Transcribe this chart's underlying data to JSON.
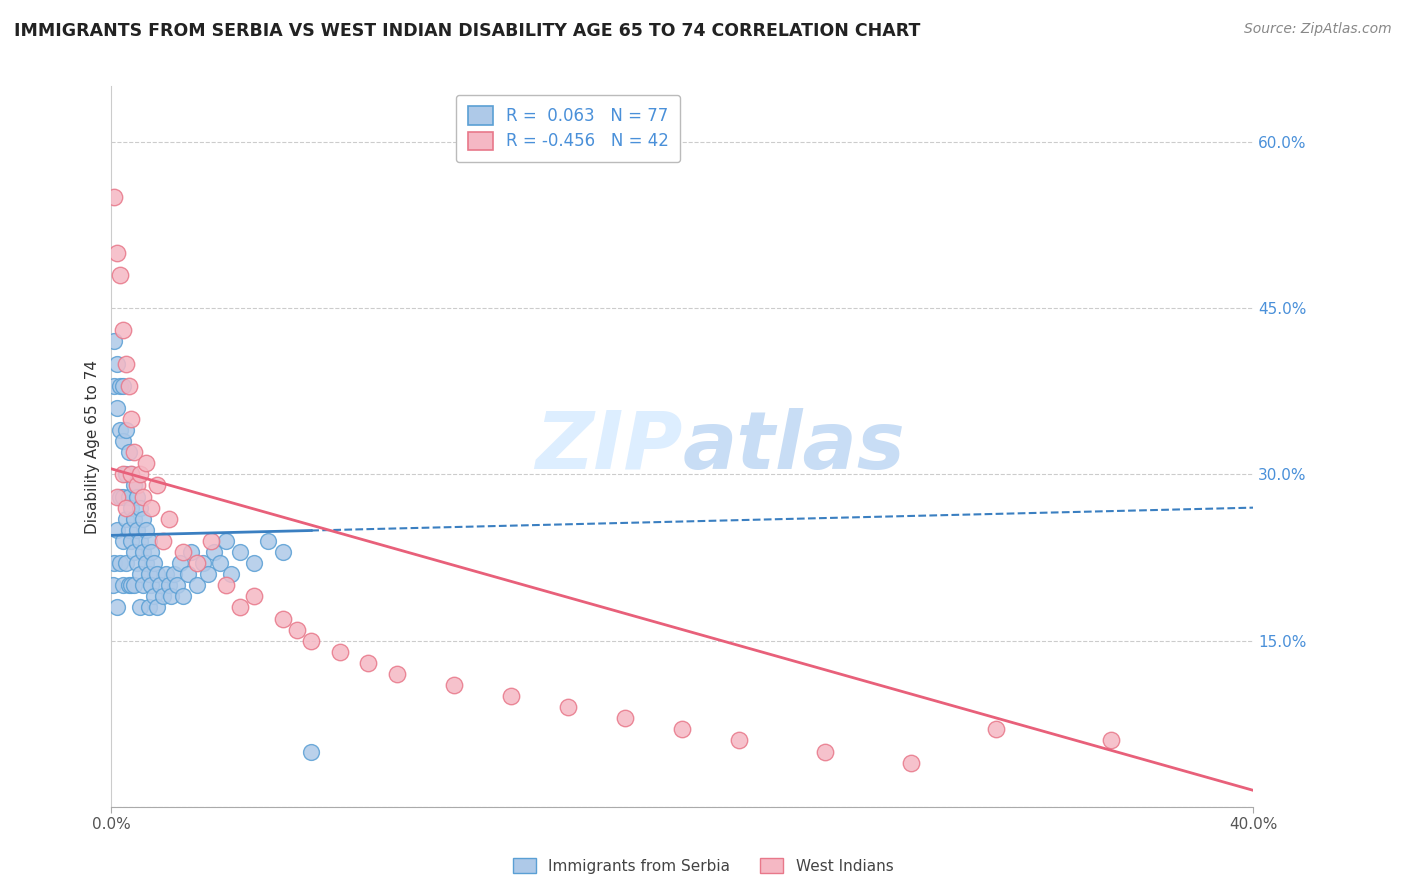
{
  "title": "IMMIGRANTS FROM SERBIA VS WEST INDIAN DISABILITY AGE 65 TO 74 CORRELATION CHART",
  "source": "Source: ZipAtlas.com",
  "ylabel": "Disability Age 65 to 74",
  "x_min": 0.0,
  "x_max": 0.4,
  "y_min": 0.0,
  "y_max": 0.65,
  "x_tick_positions": [
    0.0,
    0.4
  ],
  "x_tick_labels": [
    "0.0%",
    "40.0%"
  ],
  "y_ticks": [
    0.0,
    0.15,
    0.3,
    0.45,
    0.6
  ],
  "y_tick_labels": [
    "",
    "15.0%",
    "30.0%",
    "45.0%",
    "60.0%"
  ],
  "serbia_color": "#aec9e8",
  "serbia_edge_color": "#5a9fd4",
  "west_indian_color": "#f5b8c4",
  "west_indian_edge_color": "#e8788a",
  "trend_serbia_color": "#3a7fc1",
  "trend_west_indian_color": "#e8607a",
  "serbia_R": 0.063,
  "serbia_N": 77,
  "west_indian_R": -0.456,
  "west_indian_N": 42,
  "legend_color": "#4a90d9",
  "watermark_color": "#ddeeff",
  "serbia_x": [
    0.0005,
    0.001,
    0.001,
    0.001,
    0.002,
    0.002,
    0.002,
    0.002,
    0.003,
    0.003,
    0.003,
    0.003,
    0.004,
    0.004,
    0.004,
    0.004,
    0.004,
    0.005,
    0.005,
    0.005,
    0.005,
    0.006,
    0.006,
    0.006,
    0.006,
    0.007,
    0.007,
    0.007,
    0.007,
    0.008,
    0.008,
    0.008,
    0.008,
    0.009,
    0.009,
    0.009,
    0.01,
    0.01,
    0.01,
    0.01,
    0.011,
    0.011,
    0.011,
    0.012,
    0.012,
    0.013,
    0.013,
    0.013,
    0.014,
    0.014,
    0.015,
    0.015,
    0.016,
    0.016,
    0.017,
    0.018,
    0.019,
    0.02,
    0.021,
    0.022,
    0.023,
    0.024,
    0.025,
    0.027,
    0.028,
    0.03,
    0.032,
    0.034,
    0.036,
    0.038,
    0.04,
    0.042,
    0.045,
    0.05,
    0.055,
    0.06,
    0.07
  ],
  "serbia_y": [
    0.2,
    0.42,
    0.38,
    0.22,
    0.4,
    0.36,
    0.25,
    0.18,
    0.38,
    0.34,
    0.28,
    0.22,
    0.38,
    0.33,
    0.28,
    0.24,
    0.2,
    0.34,
    0.3,
    0.26,
    0.22,
    0.32,
    0.28,
    0.25,
    0.2,
    0.3,
    0.27,
    0.24,
    0.2,
    0.29,
    0.26,
    0.23,
    0.2,
    0.28,
    0.25,
    0.22,
    0.27,
    0.24,
    0.21,
    0.18,
    0.26,
    0.23,
    0.2,
    0.25,
    0.22,
    0.24,
    0.21,
    0.18,
    0.23,
    0.2,
    0.22,
    0.19,
    0.21,
    0.18,
    0.2,
    0.19,
    0.21,
    0.2,
    0.19,
    0.21,
    0.2,
    0.22,
    0.19,
    0.21,
    0.23,
    0.2,
    0.22,
    0.21,
    0.23,
    0.22,
    0.24,
    0.21,
    0.23,
    0.22,
    0.24,
    0.23,
    0.05
  ],
  "west_indian_x": [
    0.001,
    0.002,
    0.002,
    0.003,
    0.004,
    0.004,
    0.005,
    0.005,
    0.006,
    0.007,
    0.007,
    0.008,
    0.009,
    0.01,
    0.011,
    0.012,
    0.014,
    0.016,
    0.018,
    0.02,
    0.025,
    0.03,
    0.035,
    0.04,
    0.045,
    0.05,
    0.06,
    0.065,
    0.07,
    0.08,
    0.09,
    0.1,
    0.12,
    0.14,
    0.16,
    0.18,
    0.2,
    0.22,
    0.25,
    0.28,
    0.31,
    0.35
  ],
  "west_indian_y": [
    0.55,
    0.5,
    0.28,
    0.48,
    0.43,
    0.3,
    0.4,
    0.27,
    0.38,
    0.35,
    0.3,
    0.32,
    0.29,
    0.3,
    0.28,
    0.31,
    0.27,
    0.29,
    0.24,
    0.26,
    0.23,
    0.22,
    0.24,
    0.2,
    0.18,
    0.19,
    0.17,
    0.16,
    0.15,
    0.14,
    0.13,
    0.12,
    0.11,
    0.1,
    0.09,
    0.08,
    0.07,
    0.06,
    0.05,
    0.04,
    0.07,
    0.06
  ],
  "serbia_trend_x0": 0.0,
  "serbia_trend_x1": 0.4,
  "serbia_trend_y0": 0.245,
  "serbia_trend_y1": 0.27,
  "west_indian_trend_x0": 0.0,
  "west_indian_trend_x1": 0.4,
  "west_indian_trend_y0": 0.305,
  "west_indian_trend_y1": 0.015
}
